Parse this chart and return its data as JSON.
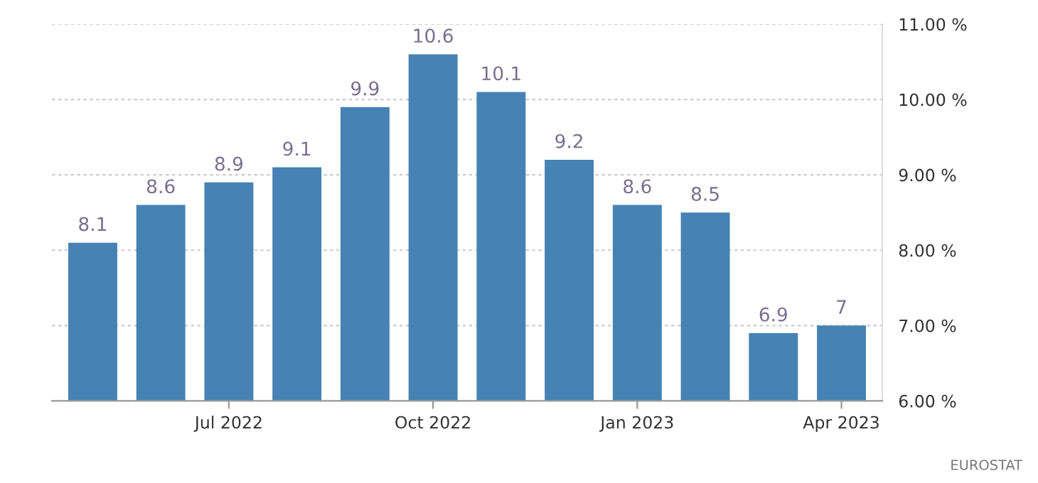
{
  "chart_data": {
    "type": "bar",
    "categories": [
      null,
      null,
      "Jul 2022",
      null,
      null,
      "Oct 2022",
      null,
      null,
      "Jan 2023",
      null,
      null,
      "Apr 2023"
    ],
    "values": [
      8.1,
      8.6,
      8.9,
      9.1,
      9.9,
      10.6,
      10.1,
      9.2,
      8.6,
      8.5,
      6.9,
      7
    ],
    "value_labels": [
      "8.1",
      "8.6",
      "8.9",
      "9.1",
      "9.9",
      "10.6",
      "10.1",
      "9.2",
      "8.6",
      "8.5",
      "6.9",
      "7"
    ],
    "color": "#4682b4",
    "ylim": [
      6,
      11
    ],
    "yticks": [
      {
        "value": 6,
        "label": "6.00 %"
      },
      {
        "value": 7,
        "label": "7.00 %"
      },
      {
        "value": 8,
        "label": "8.00 %"
      },
      {
        "value": 9,
        "label": "9.00 %"
      },
      {
        "value": 10,
        "label": "10.00 %"
      },
      {
        "value": 11,
        "label": "11.00 %"
      }
    ],
    "grid": "y",
    "annotations": [
      "EUROSTAT"
    ]
  }
}
